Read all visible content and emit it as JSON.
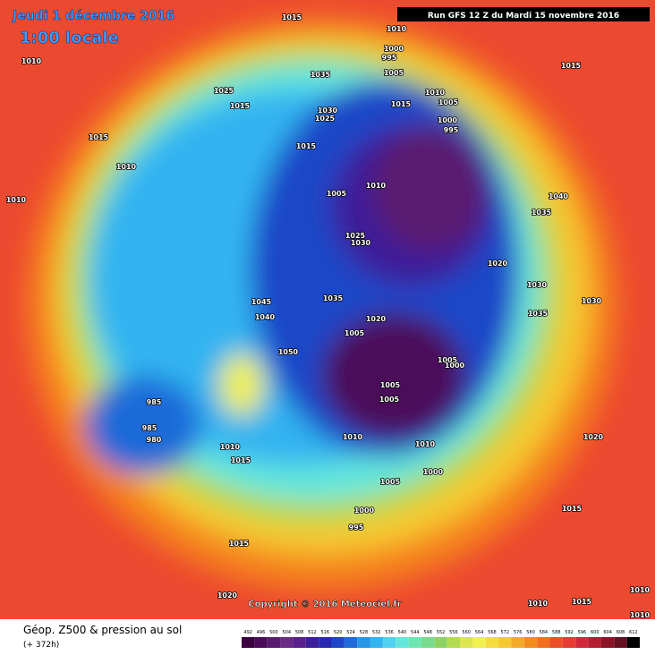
{
  "header": {
    "date": "Jeudi 1 décembre 2016",
    "time": "1:00 locale",
    "run": "Run GFS 12 Z du Mardi 15 novembre 2016"
  },
  "map": {
    "pressure_labels": [
      "1015",
      "1010",
      "1000",
      "995",
      "1005",
      "1035",
      "1015",
      "1010",
      "1025",
      "1015",
      "1030",
      "1025",
      "1015",
      "1010",
      "1005",
      "1000",
      "995",
      "1015",
      "1015",
      "1010",
      "1010",
      "1005",
      "1010",
      "1040",
      "1035",
      "1025",
      "1030",
      "1020",
      "1030",
      "1030",
      "1035",
      "1045",
      "1040",
      "1035",
      "1020",
      "1005",
      "1050",
      "1005",
      "1000",
      "1005",
      "1005",
      "985",
      "985",
      "980",
      "1010",
      "1015",
      "1010",
      "1010",
      "1020",
      "1000",
      "1005",
      "1000",
      "995",
      "1015",
      "1015",
      "1020",
      "1010",
      "1015",
      "1010",
      "1010"
    ],
    "copyright": "Copyright © 2016 Meteociel.fr"
  },
  "footer": {
    "caption": "Géop. Z500 & pression au sol",
    "lead": "(+ 372h)"
  },
  "legend": {
    "values": [
      492,
      496,
      500,
      504,
      508,
      512,
      516,
      520,
      524,
      528,
      532,
      536,
      540,
      544,
      548,
      552,
      556,
      560,
      564,
      568,
      572,
      576,
      580,
      584,
      588,
      592,
      596,
      600,
      604,
      608,
      612
    ],
    "colors": [
      "#3a0040",
      "#4b0a5a",
      "#5a1a70",
      "#6a2a86",
      "#5a1e8e",
      "#3c1e9a",
      "#2828b0",
      "#1e46c8",
      "#1e6ad8",
      "#2896e6",
      "#32b4f0",
      "#50d2f0",
      "#64e6dc",
      "#6ee6b4",
      "#78dc8c",
      "#8cd264",
      "#b4dc50",
      "#dce650",
      "#f0f050",
      "#f5dc3c",
      "#f5c832",
      "#f5aa28",
      "#f58c1e",
      "#f06e1e",
      "#eb5028",
      "#e63c32",
      "#d2283c",
      "#b41e32",
      "#8c1428",
      "#641020",
      "#000000"
    ]
  }
}
